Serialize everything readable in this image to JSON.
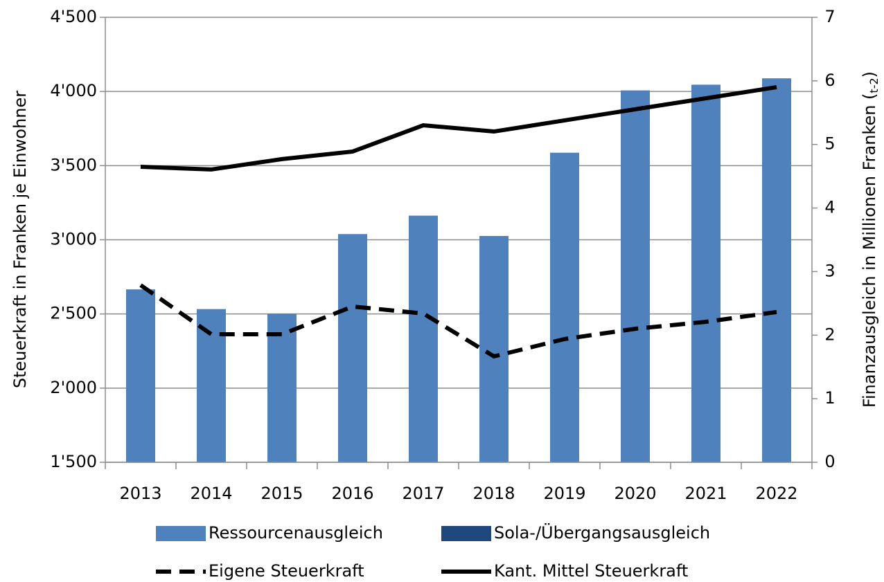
{
  "chart_data": {
    "type": "bar",
    "categories": [
      "2013",
      "2014",
      "2015",
      "2016",
      "2017",
      "2018",
      "2019",
      "2020",
      "2021",
      "2022"
    ],
    "series": [
      {
        "name": "Ressourcenausgleich",
        "type": "bar",
        "axis": "y2",
        "color": "#4f81bd",
        "values": [
          2.72,
          2.41,
          2.34,
          3.59,
          3.88,
          3.56,
          4.87,
          5.85,
          5.94,
          6.04
        ]
      },
      {
        "name": "Sola-/Übergangsausgleich",
        "type": "bar",
        "axis": "y2",
        "color": "#1f497d",
        "values": [
          0,
          0,
          0,
          0,
          0,
          0,
          0,
          0,
          0,
          0
        ]
      },
      {
        "name": "Eigene Steuerkraft",
        "type": "line",
        "dashed": true,
        "color": "#000000",
        "values": [
          2694,
          2363,
          2363,
          2550,
          2503,
          2214,
          2331,
          2400,
          2447,
          2513
        ]
      },
      {
        "name": "Kant. Mittel Steuerkraft",
        "type": "line",
        "dashed": false,
        "color": "#000000",
        "values": [
          3492,
          3474,
          3544,
          3595,
          3772,
          3730,
          3805,
          3880,
          3954,
          4029
        ]
      }
    ],
    "y_label": "Steuerkraft in Franken je Einwohner",
    "y2_label": {
      "text": "Finanzausgleich in Millionen Franken (",
      "subscript": "t-2",
      "close": ")"
    },
    "ylim": [
      1500,
      4500
    ],
    "yticks": [
      {
        "value": 1500,
        "label": "1'500"
      },
      {
        "value": 2000,
        "label": "2'000"
      },
      {
        "value": 2500,
        "label": "2'500"
      },
      {
        "value": 3000,
        "label": "3'000"
      },
      {
        "value": 3500,
        "label": "3'500"
      },
      {
        "value": 4000,
        "label": "4'000"
      },
      {
        "value": 4500,
        "label": "4'500"
      }
    ],
    "y2lim": [
      0,
      7
    ],
    "y2ticks": [
      0,
      1,
      2,
      3,
      4,
      5,
      6,
      7
    ],
    "grid": true
  }
}
